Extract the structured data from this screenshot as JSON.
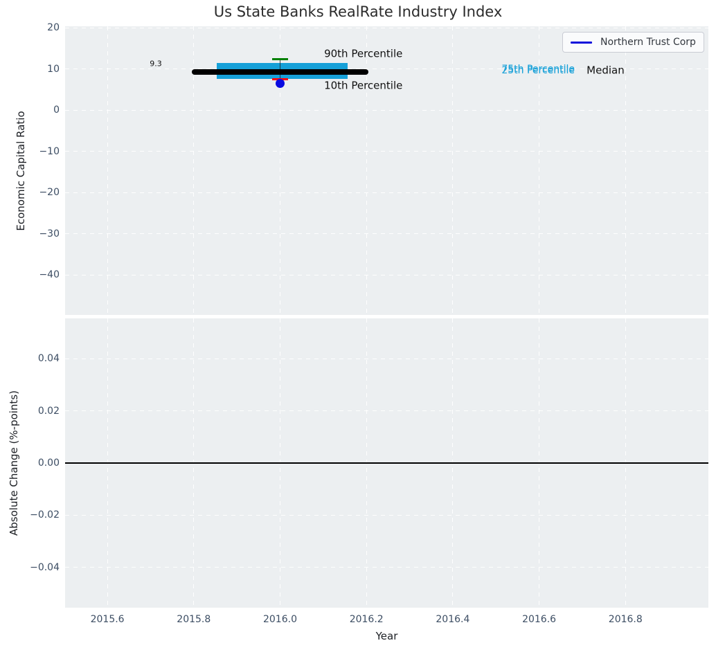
{
  "figure": {
    "background": "#ffffff",
    "plot_background": "#eceff1",
    "grid_color": "#ffffff",
    "tick_color": "#3c4d63"
  },
  "chart_data": [
    {
      "type": "boxplot",
      "title": "Us State Banks RealRate Industry Index",
      "ylabel": "Economic Capital Ratio",
      "xlim": [
        2015.502,
        2016.992
      ],
      "ylim": [
        -49.7,
        20.4
      ],
      "grid": true,
      "yticks": [
        {
          "v": 20,
          "label": "20"
        },
        {
          "v": 10,
          "label": "10"
        },
        {
          "v": 0,
          "label": "0"
        },
        {
          "v": -10,
          "label": "−10"
        },
        {
          "v": -20,
          "label": "−20"
        },
        {
          "v": -30,
          "label": "−30"
        },
        {
          "v": -40,
          "label": "−40"
        }
      ],
      "legend": {
        "position": "upper right",
        "label": "Northern Trust Corp",
        "line_color": "#0b0bdb"
      },
      "box": {
        "x": 2016.0,
        "median": 9.3,
        "q1": 7.6,
        "q3": 11.5,
        "p10": 7.5,
        "p90": 12.4,
        "median_x_span": [
          2015.795,
          2016.205
        ],
        "box_x_span": [
          2015.853,
          2016.156
        ],
        "cap_x_span": [
          2015.981,
          2016.019
        ],
        "box_color": "#16a0d8",
        "median_color": "#000000",
        "p90_color": "#008000",
        "p10_color": "#ff0000"
      },
      "company_point": {
        "series": "Northern Trust Corp",
        "x": 2016.0,
        "y": 6.5,
        "color": "#0a0ae0"
      },
      "annotations": [
        {
          "name": "median-value-label",
          "text": "9.3",
          "x": 2015.698,
          "y": 11.15,
          "color": "#111111",
          "size": 11
        },
        {
          "name": "p90-label",
          "text": "90th Percentile",
          "x": 2016.102,
          "y": 13.7,
          "color": "#111111",
          "size": 15
        },
        {
          "name": "p10-label",
          "text": "10th Percentile",
          "x": 2016.102,
          "y": 5.9,
          "color": "#111111",
          "size": 15
        },
        {
          "name": "p75-label",
          "text": "75th Percentile",
          "x": 2016.513,
          "y": 9.95,
          "color": "#16a0d8",
          "size": 14
        },
        {
          "name": "p25-label",
          "text": "25th Percentile",
          "x": 2016.513,
          "y": 9.6,
          "color": "#16a0d8",
          "size": 14
        },
        {
          "name": "median-label",
          "text": "Median",
          "x": 2016.71,
          "y": 9.6,
          "color": "#111111",
          "size": 15
        }
      ]
    },
    {
      "type": "line",
      "ylabel": "Absolute Change (%-points)",
      "xlabel": "Year",
      "xlim": [
        2015.502,
        2016.992
      ],
      "ylim": [
        -0.0555,
        0.0555
      ],
      "grid": true,
      "yticks": [
        {
          "v": 0.04,
          "label": "0.04"
        },
        {
          "v": 0.02,
          "label": "0.02"
        },
        {
          "v": 0.0,
          "label": "0.00"
        },
        {
          "v": -0.02,
          "label": "−0.02"
        },
        {
          "v": -0.04,
          "label": "−0.04"
        }
      ],
      "xticks": [
        {
          "v": 2015.6,
          "label": "2015.6"
        },
        {
          "v": 2015.8,
          "label": "2015.8"
        },
        {
          "v": 2016.0,
          "label": "2016.0"
        },
        {
          "v": 2016.2,
          "label": "2016.2"
        },
        {
          "v": 2016.4,
          "label": "2016.4"
        },
        {
          "v": 2016.6,
          "label": "2016.6"
        },
        {
          "v": 2016.8,
          "label": "2016.8"
        }
      ],
      "zero_line": {
        "y": 0.0,
        "color": "#000000"
      }
    }
  ]
}
